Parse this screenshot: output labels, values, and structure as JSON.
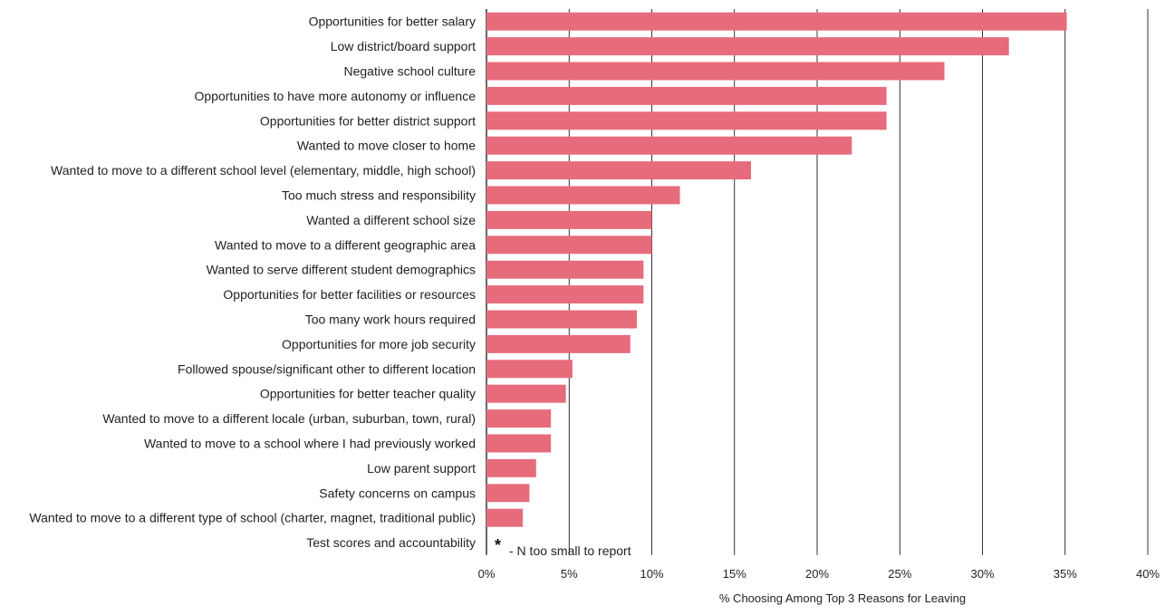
{
  "chart_data": {
    "type": "bar",
    "orientation": "horizontal",
    "title": "",
    "xlabel": "% Choosing Among Top 3 Reasons for Leaving",
    "ylabel": "",
    "xlim": [
      0,
      40
    ],
    "x_ticks": [
      "0%",
      "5%",
      "10%",
      "15%",
      "20%",
      "25%",
      "30%",
      "35%",
      "40%"
    ],
    "x_tick_values": [
      0,
      5,
      10,
      15,
      20,
      25,
      30,
      35,
      40
    ],
    "grid": "vertical",
    "bar_color": "#E66C7C",
    "categories": [
      "Opportunities for better salary",
      "Low district/board support",
      "Negative school culture",
      "Opportunities to have more autonomy or influence",
      "Opportunities for better district support",
      "Wanted to move closer to home",
      "Wanted to move to a different school level (elementary, middle, high school)",
      "Too much stress and responsibility",
      "Wanted a different school size",
      "Wanted to move to a different geographic area",
      "Wanted to serve different student demographics",
      "Opportunities for better facilities or resources",
      "Too many work hours required",
      "Opportunities for more job security",
      "Followed spouse/significant other to different location",
      "Opportunities for better teacher quality",
      "Wanted to move to a different locale (urban, suburban, town, rural)",
      "Wanted to move to a school where I had previously worked",
      "Low parent support",
      "Safety concerns on campus",
      "Wanted to move to a different type of school (charter, magnet, traditional public)",
      "Test scores and accountability"
    ],
    "values": [
      35.1,
      31.6,
      27.7,
      24.2,
      24.2,
      22.1,
      16.0,
      11.7,
      10.0,
      10.0,
      9.5,
      9.5,
      9.1,
      8.7,
      5.2,
      4.8,
      3.9,
      3.9,
      3.0,
      2.6,
      2.2,
      null
    ],
    "annotation": {
      "marker": "*",
      "text": "- N too small to report"
    }
  }
}
